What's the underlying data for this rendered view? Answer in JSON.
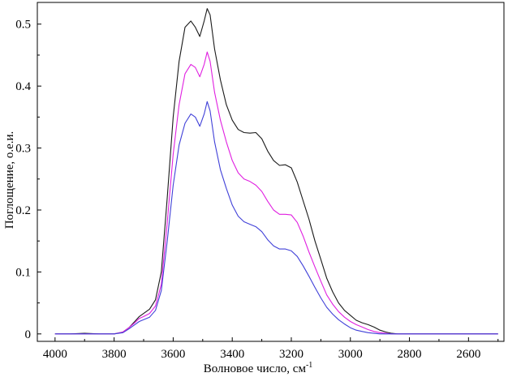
{
  "chart_data": {
    "type": "line",
    "xlabel": "Волновое число, см",
    "xlabel_superscript": "-1",
    "ylabel": "Поглощение, о.е.и.",
    "xlim": [
      4060,
      2480
    ],
    "ylim": [
      -0.012,
      0.535
    ],
    "x_reversed": true,
    "grid": false,
    "legend": "none",
    "x_ticks": [
      4000,
      3800,
      3600,
      3400,
      3200,
      3000,
      2800,
      2600
    ],
    "x_tick_labels": [
      "4000",
      "3800",
      "3600",
      "3400",
      "3200",
      "3000",
      "2800",
      "2600"
    ],
    "y_ticks": [
      0,
      0.1,
      0.2,
      0.3,
      0.4,
      0.5
    ],
    "y_tick_labels": [
      "0",
      "0.1",
      "0.2",
      "0.3",
      "0.4",
      "0.5"
    ],
    "series": [
      {
        "color": "#1a1a1a",
        "x": [
          4000,
          3950,
          3900,
          3850,
          3800,
          3770,
          3750,
          3730,
          3715,
          3700,
          3680,
          3660,
          3640,
          3620,
          3600,
          3580,
          3560,
          3540,
          3525,
          3510,
          3495,
          3485,
          3475,
          3460,
          3440,
          3420,
          3400,
          3380,
          3360,
          3340,
          3320,
          3300,
          3280,
          3260,
          3240,
          3220,
          3200,
          3180,
          3160,
          3140,
          3120,
          3100,
          3080,
          3060,
          3040,
          3020,
          3000,
          2980,
          2960,
          2940,
          2920,
          2900,
          2880,
          2860,
          2840,
          2800,
          2750,
          2700,
          2650,
          2600,
          2550,
          2500
        ],
        "values": [
          0,
          0,
          0.001,
          0,
          0,
          0.003,
          0.01,
          0.02,
          0.028,
          0.033,
          0.04,
          0.055,
          0.1,
          0.22,
          0.35,
          0.44,
          0.495,
          0.505,
          0.495,
          0.48,
          0.505,
          0.525,
          0.515,
          0.46,
          0.41,
          0.37,
          0.345,
          0.33,
          0.325,
          0.324,
          0.325,
          0.315,
          0.295,
          0.28,
          0.272,
          0.273,
          0.268,
          0.245,
          0.215,
          0.185,
          0.15,
          0.12,
          0.09,
          0.068,
          0.05,
          0.038,
          0.03,
          0.022,
          0.018,
          0.015,
          0.011,
          0.006,
          0.003,
          0.001,
          0,
          0,
          0,
          0,
          0,
          0,
          0,
          0
        ]
      },
      {
        "color": "#e020e0",
        "x": [
          4000,
          3950,
          3900,
          3850,
          3800,
          3770,
          3750,
          3730,
          3715,
          3700,
          3680,
          3660,
          3640,
          3620,
          3600,
          3580,
          3560,
          3540,
          3525,
          3510,
          3495,
          3485,
          3475,
          3460,
          3440,
          3420,
          3400,
          3380,
          3360,
          3340,
          3320,
          3300,
          3280,
          3260,
          3240,
          3220,
          3200,
          3180,
          3160,
          3140,
          3120,
          3100,
          3080,
          3060,
          3040,
          3020,
          3000,
          2980,
          2960,
          2940,
          2920,
          2900,
          2880,
          2860,
          2840,
          2800,
          2750,
          2700,
          2650,
          2600,
          2550,
          2500
        ],
        "values": [
          0,
          0,
          0,
          0,
          0,
          0.003,
          0.01,
          0.018,
          0.025,
          0.028,
          0.033,
          0.045,
          0.08,
          0.18,
          0.29,
          0.37,
          0.42,
          0.435,
          0.43,
          0.415,
          0.435,
          0.455,
          0.44,
          0.39,
          0.345,
          0.31,
          0.28,
          0.26,
          0.25,
          0.246,
          0.24,
          0.23,
          0.214,
          0.2,
          0.193,
          0.193,
          0.192,
          0.18,
          0.158,
          0.132,
          0.108,
          0.085,
          0.063,
          0.048,
          0.036,
          0.027,
          0.02,
          0.015,
          0.011,
          0.007,
          0.004,
          0.002,
          0.001,
          0,
          0,
          0,
          0,
          0,
          0,
          0,
          0,
          0
        ]
      },
      {
        "color": "#4040d8",
        "x": [
          4000,
          3950,
          3900,
          3850,
          3800,
          3770,
          3750,
          3730,
          3715,
          3700,
          3680,
          3660,
          3640,
          3620,
          3600,
          3580,
          3560,
          3540,
          3525,
          3510,
          3495,
          3485,
          3475,
          3460,
          3440,
          3420,
          3400,
          3380,
          3360,
          3340,
          3320,
          3300,
          3280,
          3260,
          3240,
          3220,
          3200,
          3180,
          3160,
          3140,
          3120,
          3100,
          3080,
          3060,
          3040,
          3020,
          3000,
          2980,
          2960,
          2940,
          2920,
          2900,
          2880,
          2860,
          2840,
          2800,
          2750,
          2700,
          2650,
          2600,
          2550,
          2500
        ],
        "values": [
          0,
          0,
          0,
          0,
          0,
          0.002,
          0.008,
          0.015,
          0.02,
          0.023,
          0.027,
          0.038,
          0.07,
          0.15,
          0.24,
          0.305,
          0.34,
          0.355,
          0.35,
          0.335,
          0.355,
          0.375,
          0.36,
          0.31,
          0.265,
          0.235,
          0.208,
          0.19,
          0.181,
          0.177,
          0.173,
          0.165,
          0.152,
          0.142,
          0.137,
          0.137,
          0.134,
          0.125,
          0.11,
          0.093,
          0.075,
          0.058,
          0.043,
          0.032,
          0.023,
          0.016,
          0.01,
          0.006,
          0.004,
          0.002,
          0.001,
          0,
          0,
          0,
          0,
          0,
          0,
          0,
          0,
          0,
          0,
          0
        ]
      }
    ]
  }
}
